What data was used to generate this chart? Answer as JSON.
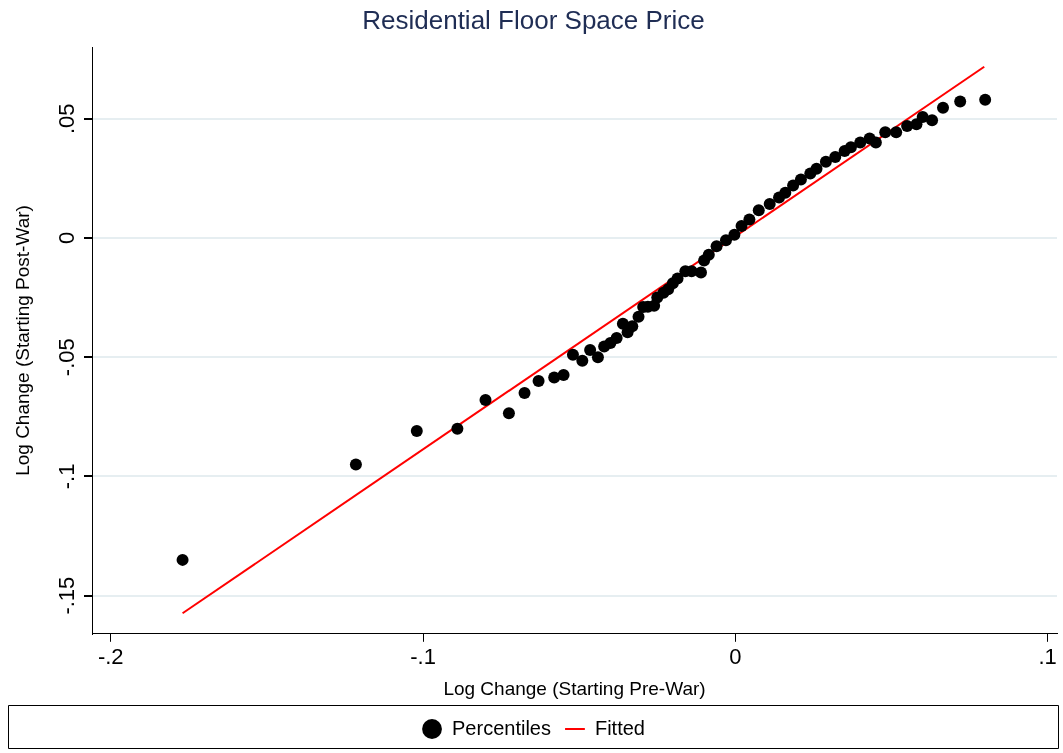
{
  "chart_data": {
    "type": "scatter",
    "title": "Residential Floor Space Price",
    "xlabel": "Log Change (Starting Pre-War)",
    "ylabel": "Log Change (Starting Post-War)",
    "xlim": [
      -0.206,
      0.103
    ],
    "ylim": [
      -0.166,
      0.08
    ],
    "xticks": [
      {
        "value": -0.2,
        "label": "-.2"
      },
      {
        "value": -0.1,
        "label": "-.1"
      },
      {
        "value": 0,
        "label": "0"
      },
      {
        "value": 0.1,
        "label": ".1"
      }
    ],
    "yticks": [
      {
        "value": -0.15,
        "label": "-.15"
      },
      {
        "value": -0.1,
        "label": "-.1"
      },
      {
        "value": -0.05,
        "label": "-.05"
      },
      {
        "value": 0,
        "label": "0"
      },
      {
        "value": 0.05,
        "label": ".05"
      }
    ],
    "grid": "y",
    "legend": "bottom",
    "series": [
      {
        "name": "Percentiles",
        "type": "scatter",
        "marker": "circle",
        "color": "#000000",
        "x": [
          -0.177,
          -0.1215,
          -0.102,
          -0.089,
          -0.08,
          -0.0725,
          -0.0675,
          -0.063,
          -0.058,
          -0.055,
          -0.052,
          -0.049,
          -0.0465,
          -0.044,
          -0.042,
          -0.04,
          -0.038,
          -0.036,
          -0.0345,
          -0.033,
          -0.031,
          -0.0295,
          -0.028,
          -0.026,
          -0.025,
          -0.023,
          -0.0215,
          -0.02,
          -0.0185,
          -0.016,
          -0.014,
          -0.011,
          -0.01,
          -0.0085,
          -0.006,
          -0.003,
          -0.0003,
          0.002,
          0.0045,
          0.0075,
          0.011,
          0.014,
          0.016,
          0.0185,
          0.021,
          0.024,
          0.026,
          0.029,
          0.032,
          0.035,
          0.037,
          0.04,
          0.043,
          0.045,
          0.048,
          0.0515,
          0.055,
          0.058,
          0.06,
          0.063,
          0.0665,
          0.072,
          0.08
        ],
        "values": [
          -0.135,
          -0.095,
          -0.081,
          -0.08,
          -0.068,
          -0.0735,
          -0.065,
          -0.06,
          -0.0585,
          -0.0575,
          -0.049,
          -0.0515,
          -0.047,
          -0.05,
          -0.0455,
          -0.044,
          -0.042,
          -0.036,
          -0.0395,
          -0.037,
          -0.033,
          -0.029,
          -0.0288,
          -0.0284,
          -0.025,
          -0.023,
          -0.0215,
          -0.019,
          -0.017,
          -0.014,
          -0.014,
          -0.0145,
          -0.0095,
          -0.007,
          -0.0035,
          -0.001,
          0.0013,
          0.005,
          0.0077,
          0.0116,
          0.0142,
          0.017,
          0.019,
          0.022,
          0.0245,
          0.027,
          0.029,
          0.032,
          0.034,
          0.0365,
          0.038,
          0.04,
          0.0417,
          0.04,
          0.0443,
          0.0443,
          0.047,
          0.0477,
          0.0507,
          0.0494,
          0.0546,
          0.0572,
          0.058
        ]
      },
      {
        "name": "Fitted",
        "type": "line",
        "marker": "none",
        "line_style": "solid",
        "color": "#ff0000",
        "x": [
          -0.177,
          0.0797
        ],
        "values": [
          -0.1574,
          0.0718
        ]
      }
    ]
  }
}
